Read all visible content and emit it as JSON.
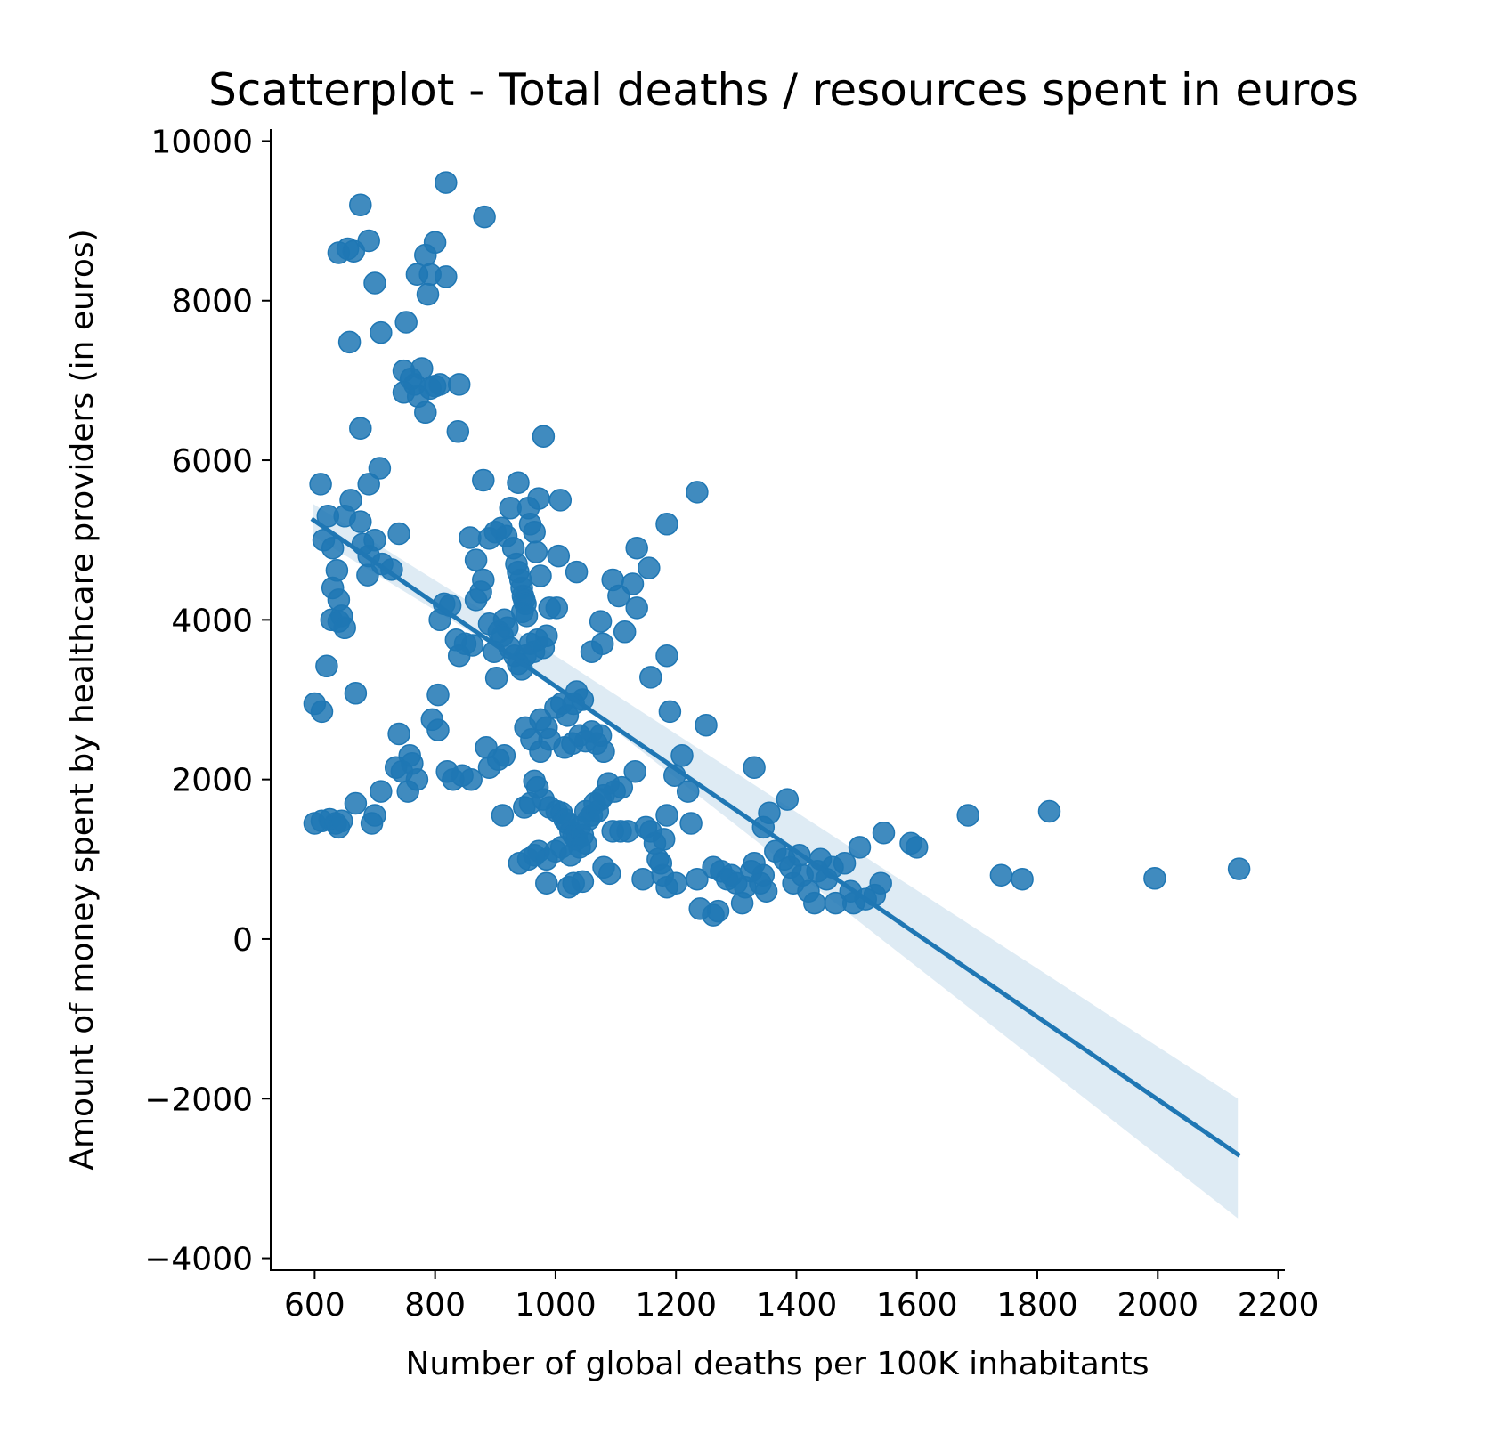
{
  "chart_data": {
    "type": "scatter",
    "title": "Scatterplot - Total deaths / resources spent in euros",
    "xlabel": "Number of global deaths per 100K inhabitants",
    "ylabel": "Amount of money spent by healthcare providers (in euros)",
    "xlim": [
      527,
      2211
    ],
    "ylim": [
      -4150,
      10150
    ],
    "xticks": [
      600,
      800,
      1000,
      1200,
      1400,
      1600,
      1800,
      2000,
      2200
    ],
    "yticks": [
      -4000,
      -2000,
      0,
      2000,
      4000,
      6000,
      8000,
      10000
    ],
    "x_tick_labels": [
      "600",
      "800",
      "1000",
      "1200",
      "1400",
      "1600",
      "1800",
      "2000",
      "2200"
    ],
    "y_tick_labels": [
      "−4000",
      "−2000",
      "0",
      "2000",
      "4000",
      "6000",
      "8000",
      "10000"
    ],
    "grid": false,
    "colors": {
      "points": "#1f77b4",
      "regression_line": "#1f77b4",
      "confidence_band": "#1f77b4"
    },
    "regression": {
      "x_start": 598,
      "x_end": 2133,
      "y_start": 5250,
      "y_end": -2700,
      "ci_at_start": [
        5050,
        5450
      ],
      "ci_at_mid": [
        3200,
        3550
      ],
      "ci_x_mid": 1000,
      "ci_at_end": [
        -3500,
        -2000
      ]
    },
    "points": [
      [
        600,
        1450
      ],
      [
        612,
        1480
      ],
      [
        625,
        1500
      ],
      [
        635,
        1450
      ],
      [
        640,
        1400
      ],
      [
        645,
        1480
      ],
      [
        668,
        1700
      ],
      [
        695,
        1450
      ],
      [
        700,
        1550
      ],
      [
        710,
        1850
      ],
      [
        600,
        2950
      ],
      [
        612,
        2850
      ],
      [
        620,
        3420
      ],
      [
        668,
        3080
      ],
      [
        610,
        5700
      ],
      [
        615,
        5000
      ],
      [
        622,
        5300
      ],
      [
        630,
        4900
      ],
      [
        637,
        4620
      ],
      [
        630,
        4400
      ],
      [
        640,
        4250
      ],
      [
        645,
        4050
      ],
      [
        628,
        4000
      ],
      [
        640,
        3980
      ],
      [
        650,
        3900
      ],
      [
        650,
        5300
      ],
      [
        660,
        5500
      ],
      [
        676,
        5230
      ],
      [
        680,
        4950
      ],
      [
        690,
        4800
      ],
      [
        688,
        4560
      ],
      [
        700,
        5000
      ],
      [
        712,
        4700
      ],
      [
        728,
        4630
      ],
      [
        740,
        5080
      ],
      [
        640,
        8600
      ],
      [
        655,
        8650
      ],
      [
        665,
        8620
      ],
      [
        676,
        9200
      ],
      [
        690,
        8750
      ],
      [
        700,
        8220
      ],
      [
        710,
        7600
      ],
      [
        658,
        7480
      ],
      [
        752,
        7730
      ],
      [
        676,
        6400
      ],
      [
        690,
        5700
      ],
      [
        708,
        5900
      ],
      [
        748,
        7120
      ],
      [
        748,
        6850
      ],
      [
        760,
        7020
      ],
      [
        766,
        6950
      ],
      [
        772,
        6800
      ],
      [
        778,
        7150
      ],
      [
        784,
        6600
      ],
      [
        792,
        6900
      ],
      [
        800,
        6930
      ],
      [
        808,
        6950
      ],
      [
        840,
        6950
      ],
      [
        770,
        8330
      ],
      [
        784,
        8570
      ],
      [
        792,
        8330
      ],
      [
        800,
        8730
      ],
      [
        788,
        8080
      ],
      [
        818,
        8300
      ],
      [
        818,
        9480
      ],
      [
        882,
        9050
      ],
      [
        838,
        6360
      ],
      [
        880,
        5750
      ],
      [
        740,
        2570
      ],
      [
        735,
        2150
      ],
      [
        745,
        2100
      ],
      [
        758,
        2300
      ],
      [
        762,
        2200
      ],
      [
        770,
        2000
      ],
      [
        755,
        1850
      ],
      [
        795,
        2750
      ],
      [
        805,
        3060
      ],
      [
        805,
        2620
      ],
      [
        820,
        2100
      ],
      [
        830,
        2000
      ],
      [
        845,
        2050
      ],
      [
        860,
        2000
      ],
      [
        808,
        4000
      ],
      [
        815,
        4200
      ],
      [
        825,
        4180
      ],
      [
        835,
        3750
      ],
      [
        840,
        3550
      ],
      [
        850,
        3700
      ],
      [
        862,
        3680
      ],
      [
        868,
        4250
      ],
      [
        876,
        4350
      ],
      [
        858,
        5030
      ],
      [
        868,
        4750
      ],
      [
        880,
        4500
      ],
      [
        890,
        3950
      ],
      [
        898,
        3600
      ],
      [
        902,
        3270
      ],
      [
        906,
        3850
      ],
      [
        915,
        4000
      ],
      [
        920,
        3900
      ],
      [
        890,
        5020
      ],
      [
        900,
        5100
      ],
      [
        910,
        5150
      ],
      [
        918,
        5050
      ],
      [
        925,
        5400
      ],
      [
        930,
        4900
      ],
      [
        935,
        4700
      ],
      [
        938,
        4600
      ],
      [
        942,
        4500
      ],
      [
        944,
        4400
      ],
      [
        946,
        4300
      ],
      [
        948,
        4250
      ],
      [
        950,
        4200
      ],
      [
        945,
        4100
      ],
      [
        952,
        4050
      ],
      [
        955,
        5400
      ],
      [
        958,
        5200
      ],
      [
        965,
        5100
      ],
      [
        968,
        4850
      ],
      [
        975,
        4550
      ],
      [
        912,
        3800
      ],
      [
        924,
        3650
      ],
      [
        932,
        3550
      ],
      [
        938,
        3450
      ],
      [
        944,
        3380
      ],
      [
        950,
        3550
      ],
      [
        958,
        3700
      ],
      [
        964,
        3600
      ],
      [
        970,
        3750
      ],
      [
        980,
        3650
      ],
      [
        985,
        3800
      ],
      [
        990,
        4150
      ],
      [
        1002,
        4150
      ],
      [
        938,
        5720
      ],
      [
        972,
        5520
      ],
      [
        1008,
        5500
      ],
      [
        980,
        6300
      ],
      [
        950,
        2650
      ],
      [
        960,
        2500
      ],
      [
        975,
        2750
      ],
      [
        985,
        2650
      ],
      [
        990,
        2500
      ],
      [
        975,
        2350
      ],
      [
        1000,
        2900
      ],
      [
        1010,
        2950
      ],
      [
        1020,
        2800
      ],
      [
        1030,
        2950
      ],
      [
        1035,
        3100
      ],
      [
        1045,
        3000
      ],
      [
        1015,
        2400
      ],
      [
        1028,
        2450
      ],
      [
        1040,
        2550
      ],
      [
        1050,
        2480
      ],
      [
        1060,
        2600
      ],
      [
        1068,
        2450
      ],
      [
        1075,
        2550
      ],
      [
        1080,
        2350
      ],
      [
        890,
        2150
      ],
      [
        885,
        2400
      ],
      [
        905,
        2250
      ],
      [
        915,
        2300
      ],
      [
        912,
        1550
      ],
      [
        948,
        1650
      ],
      [
        958,
        1700
      ],
      [
        965,
        1980
      ],
      [
        970,
        1900
      ],
      [
        980,
        1750
      ],
      [
        990,
        1650
      ],
      [
        1002,
        1600
      ],
      [
        1010,
        1580
      ],
      [
        1015,
        1500
      ],
      [
        1020,
        1450
      ],
      [
        1025,
        1350
      ],
      [
        1030,
        1300
      ],
      [
        1035,
        1250
      ],
      [
        1040,
        1400
      ],
      [
        1045,
        1300
      ],
      [
        1050,
        1600
      ],
      [
        1055,
        1500
      ],
      [
        1060,
        1550
      ],
      [
        1065,
        1700
      ],
      [
        1070,
        1600
      ],
      [
        1075,
        1750
      ],
      [
        1080,
        1800
      ],
      [
        1088,
        1950
      ],
      [
        1098,
        1850
      ],
      [
        1110,
        1900
      ],
      [
        1132,
        2100
      ],
      [
        940,
        950
      ],
      [
        955,
        1000
      ],
      [
        965,
        1050
      ],
      [
        972,
        1100
      ],
      [
        985,
        1000
      ],
      [
        1000,
        1100
      ],
      [
        1010,
        1150
      ],
      [
        1025,
        1050
      ],
      [
        1040,
        1150
      ],
      [
        1050,
        1200
      ],
      [
        985,
        700
      ],
      [
        1022,
        650
      ],
      [
        1030,
        700
      ],
      [
        1045,
        720
      ],
      [
        1080,
        900
      ],
      [
        1090,
        820
      ],
      [
        1005,
        4800
      ],
      [
        1035,
        4600
      ],
      [
        1060,
        3600
      ],
      [
        1078,
        3700
      ],
      [
        1075,
        3980
      ],
      [
        1095,
        4500
      ],
      [
        1105,
        4300
      ],
      [
        1115,
        3850
      ],
      [
        1128,
        4450
      ],
      [
        1135,
        4150
      ],
      [
        1135,
        4900
      ],
      [
        1155,
        4650
      ],
      [
        1158,
        3280
      ],
      [
        1185,
        3550
      ],
      [
        1185,
        5200
      ],
      [
        1235,
        5600
      ],
      [
        1190,
        2850
      ],
      [
        1210,
        2300
      ],
      [
        1198,
        2050
      ],
      [
        1220,
        1850
      ],
      [
        1225,
        1450
      ],
      [
        1250,
        2680
      ],
      [
        1095,
        1350
      ],
      [
        1108,
        1350
      ],
      [
        1120,
        1350
      ],
      [
        1150,
        1400
      ],
      [
        1158,
        1350
      ],
      [
        1165,
        1200
      ],
      [
        1170,
        1000
      ],
      [
        1175,
        950
      ],
      [
        1180,
        1250
      ],
      [
        1185,
        1550
      ],
      [
        1145,
        750
      ],
      [
        1178,
        800
      ],
      [
        1185,
        650
      ],
      [
        1200,
        700
      ],
      [
        1235,
        750
      ],
      [
        1240,
        380
      ],
      [
        1262,
        300
      ],
      [
        1270,
        350
      ],
      [
        1262,
        900
      ],
      [
        1275,
        850
      ],
      [
        1285,
        750
      ],
      [
        1292,
        800
      ],
      [
        1300,
        700
      ],
      [
        1310,
        450
      ],
      [
        1315,
        650
      ],
      [
        1325,
        850
      ],
      [
        1330,
        950
      ],
      [
        1340,
        700
      ],
      [
        1345,
        800
      ],
      [
        1350,
        600
      ],
      [
        1330,
        2150
      ],
      [
        1345,
        1400
      ],
      [
        1355,
        1580
      ],
      [
        1365,
        1100
      ],
      [
        1385,
        1750
      ],
      [
        1380,
        1000
      ],
      [
        1390,
        900
      ],
      [
        1395,
        700
      ],
      [
        1405,
        1050
      ],
      [
        1410,
        800
      ],
      [
        1420,
        600
      ],
      [
        1430,
        450
      ],
      [
        1435,
        850
      ],
      [
        1440,
        1000
      ],
      [
        1450,
        750
      ],
      [
        1460,
        900
      ],
      [
        1465,
        450
      ],
      [
        1480,
        950
      ],
      [
        1490,
        600
      ],
      [
        1495,
        450
      ],
      [
        1505,
        1150
      ],
      [
        1515,
        500
      ],
      [
        1530,
        550
      ],
      [
        1540,
        700
      ],
      [
        1545,
        1330
      ],
      [
        1590,
        1200
      ],
      [
        1600,
        1150
      ],
      [
        1685,
        1550
      ],
      [
        1740,
        800
      ],
      [
        1775,
        750
      ],
      [
        1820,
        1600
      ],
      [
        1995,
        760
      ],
      [
        2135,
        880
      ]
    ]
  }
}
